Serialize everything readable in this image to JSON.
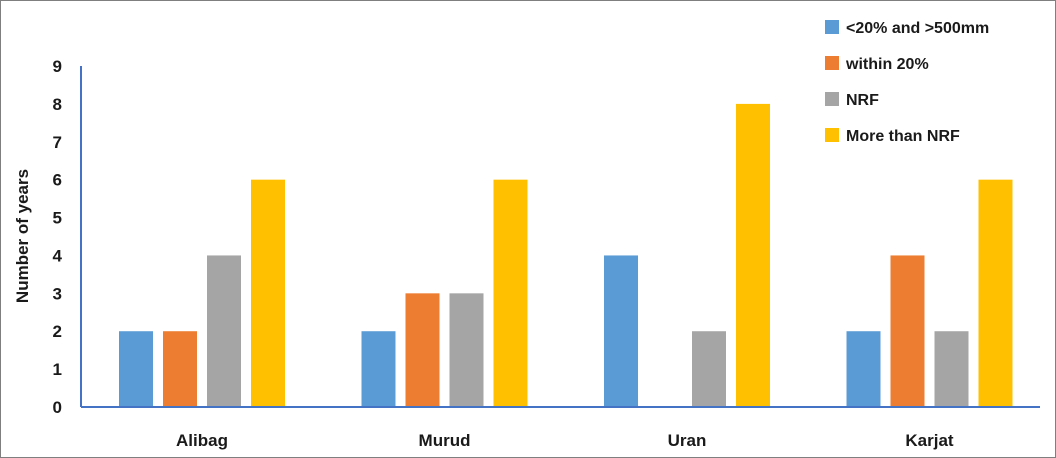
{
  "chart_data": {
    "type": "bar",
    "title": "",
    "xlabel": "",
    "ylabel": "Number of years",
    "ylim": [
      0,
      9
    ],
    "yticks": [
      0,
      1,
      2,
      3,
      4,
      5,
      6,
      7,
      8,
      9
    ],
    "grid": false,
    "legend_position": "top-right",
    "categories": [
      "Alibag",
      "Murud",
      "Uran",
      "Karjat"
    ],
    "series": [
      {
        "name": "<20% and >500mm",
        "color": "#5b9bd5",
        "values": [
          2,
          2,
          4,
          2
        ]
      },
      {
        "name": "within 20%",
        "color": "#ed7d31",
        "values": [
          2,
          3,
          0,
          4
        ]
      },
      {
        "name": "NRF",
        "color": "#a5a5a5",
        "values": [
          4,
          3,
          2,
          2
        ]
      },
      {
        "name": "More than NRF",
        "color": "#ffc000",
        "values": [
          6,
          6,
          8,
          6
        ]
      }
    ],
    "axis_color": "#4472c4"
  }
}
